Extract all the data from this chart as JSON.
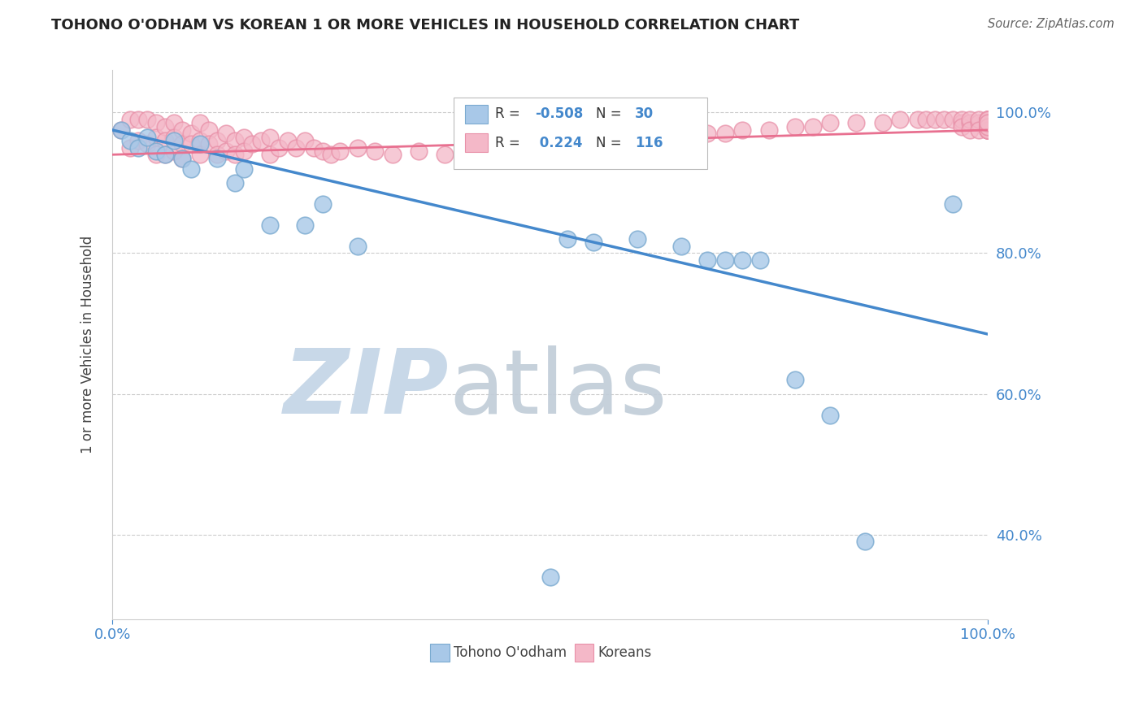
{
  "title": "TOHONO O'ODHAM VS KOREAN 1 OR MORE VEHICLES IN HOUSEHOLD CORRELATION CHART",
  "source": "Source: ZipAtlas.com",
  "ylabel": "1 or more Vehicles in Household",
  "ytick_labels": [
    "40.0%",
    "60.0%",
    "80.0%",
    "100.0%"
  ],
  "ytick_values": [
    0.4,
    0.6,
    0.8,
    1.0
  ],
  "xlim": [
    0.0,
    1.0
  ],
  "ylim": [
    0.28,
    1.06
  ],
  "blue_R": -0.508,
  "blue_N": 30,
  "pink_R": 0.224,
  "pink_N": 116,
  "blue_color": "#a8c8e8",
  "pink_color": "#f4b8c8",
  "blue_edge_color": "#7aaad0",
  "pink_edge_color": "#e890a8",
  "blue_line_color": "#4488cc",
  "pink_line_color": "#e87090",
  "watermark_zip_color": "#c8d8e8",
  "watermark_atlas_color": "#c0ccd8",
  "background_color": "#ffffff",
  "legend_box_color": "#ffffff",
  "legend_edge_color": "#cccccc",
  "blue_trend_x0": 0.0,
  "blue_trend_y0": 0.975,
  "blue_trend_x1": 1.0,
  "blue_trend_y1": 0.685,
  "pink_trend_x0": 0.0,
  "pink_trend_y0": 0.94,
  "pink_trend_x1": 1.0,
  "pink_trend_y1": 0.975,
  "blue_x": [
    0.01,
    0.02,
    0.03,
    0.04,
    0.05,
    0.06,
    0.07,
    0.08,
    0.09,
    0.1,
    0.12,
    0.14,
    0.15,
    0.18,
    0.22,
    0.24,
    0.28,
    0.5,
    0.52,
    0.55,
    0.6,
    0.65,
    0.68,
    0.7,
    0.72,
    0.74,
    0.78,
    0.82,
    0.86,
    0.96
  ],
  "blue_y": [
    0.975,
    0.96,
    0.95,
    0.965,
    0.945,
    0.94,
    0.96,
    0.935,
    0.92,
    0.955,
    0.935,
    0.9,
    0.92,
    0.84,
    0.84,
    0.87,
    0.81,
    0.34,
    0.82,
    0.815,
    0.82,
    0.81,
    0.79,
    0.79,
    0.79,
    0.79,
    0.62,
    0.57,
    0.39,
    0.87
  ],
  "pink_x": [
    0.01,
    0.02,
    0.02,
    0.03,
    0.03,
    0.04,
    0.04,
    0.05,
    0.05,
    0.05,
    0.06,
    0.06,
    0.06,
    0.07,
    0.07,
    0.07,
    0.08,
    0.08,
    0.08,
    0.09,
    0.09,
    0.1,
    0.1,
    0.1,
    0.11,
    0.11,
    0.12,
    0.12,
    0.13,
    0.13,
    0.14,
    0.14,
    0.15,
    0.15,
    0.16,
    0.17,
    0.18,
    0.18,
    0.19,
    0.2,
    0.21,
    0.22,
    0.23,
    0.24,
    0.25,
    0.26,
    0.28,
    0.3,
    0.32,
    0.35,
    0.38,
    0.4,
    0.42,
    0.45,
    0.48,
    0.5,
    0.52,
    0.54,
    0.56,
    0.58,
    0.6,
    0.62,
    0.65,
    0.68,
    0.7,
    0.72,
    0.75,
    0.78,
    0.8,
    0.82,
    0.85,
    0.88,
    0.9,
    0.92,
    0.93,
    0.94,
    0.95,
    0.96,
    0.97,
    0.97,
    0.97,
    0.98,
    0.98,
    0.98,
    0.99,
    0.99,
    0.99,
    1.0,
    1.0,
    1.0,
    1.0,
    1.0,
    1.0,
    1.0,
    1.0,
    1.0,
    1.0,
    1.0,
    1.0,
    1.0,
    1.0,
    1.0,
    1.0,
    1.0,
    1.0,
    1.0,
    1.0,
    1.0,
    1.0,
    1.0,
    1.0,
    1.0,
    1.0,
    1.0,
    1.0,
    1.0
  ],
  "pink_y": [
    0.975,
    0.99,
    0.95,
    0.99,
    0.96,
    0.99,
    0.955,
    0.985,
    0.965,
    0.94,
    0.98,
    0.96,
    0.94,
    0.985,
    0.965,
    0.945,
    0.975,
    0.955,
    0.935,
    0.97,
    0.955,
    0.985,
    0.96,
    0.94,
    0.975,
    0.955,
    0.96,
    0.94,
    0.97,
    0.945,
    0.96,
    0.94,
    0.965,
    0.945,
    0.955,
    0.96,
    0.965,
    0.94,
    0.95,
    0.96,
    0.95,
    0.96,
    0.95,
    0.945,
    0.94,
    0.945,
    0.95,
    0.945,
    0.94,
    0.945,
    0.94,
    0.945,
    0.94,
    0.95,
    0.945,
    0.95,
    0.945,
    0.96,
    0.945,
    0.96,
    0.955,
    0.96,
    0.965,
    0.97,
    0.97,
    0.975,
    0.975,
    0.98,
    0.98,
    0.985,
    0.985,
    0.985,
    0.99,
    0.99,
    0.99,
    0.99,
    0.99,
    0.99,
    0.985,
    0.99,
    0.98,
    0.985,
    0.99,
    0.975,
    0.985,
    0.99,
    0.975,
    0.985,
    0.99,
    0.975,
    0.98,
    0.985,
    0.99,
    0.975,
    0.98,
    0.985,
    0.99,
    0.975,
    0.98,
    0.985,
    0.99,
    0.975,
    0.98,
    0.985,
    0.99,
    0.975,
    0.98,
    0.985,
    0.99,
    0.975,
    0.98,
    0.985,
    0.99,
    0.975,
    0.98,
    0.985
  ]
}
